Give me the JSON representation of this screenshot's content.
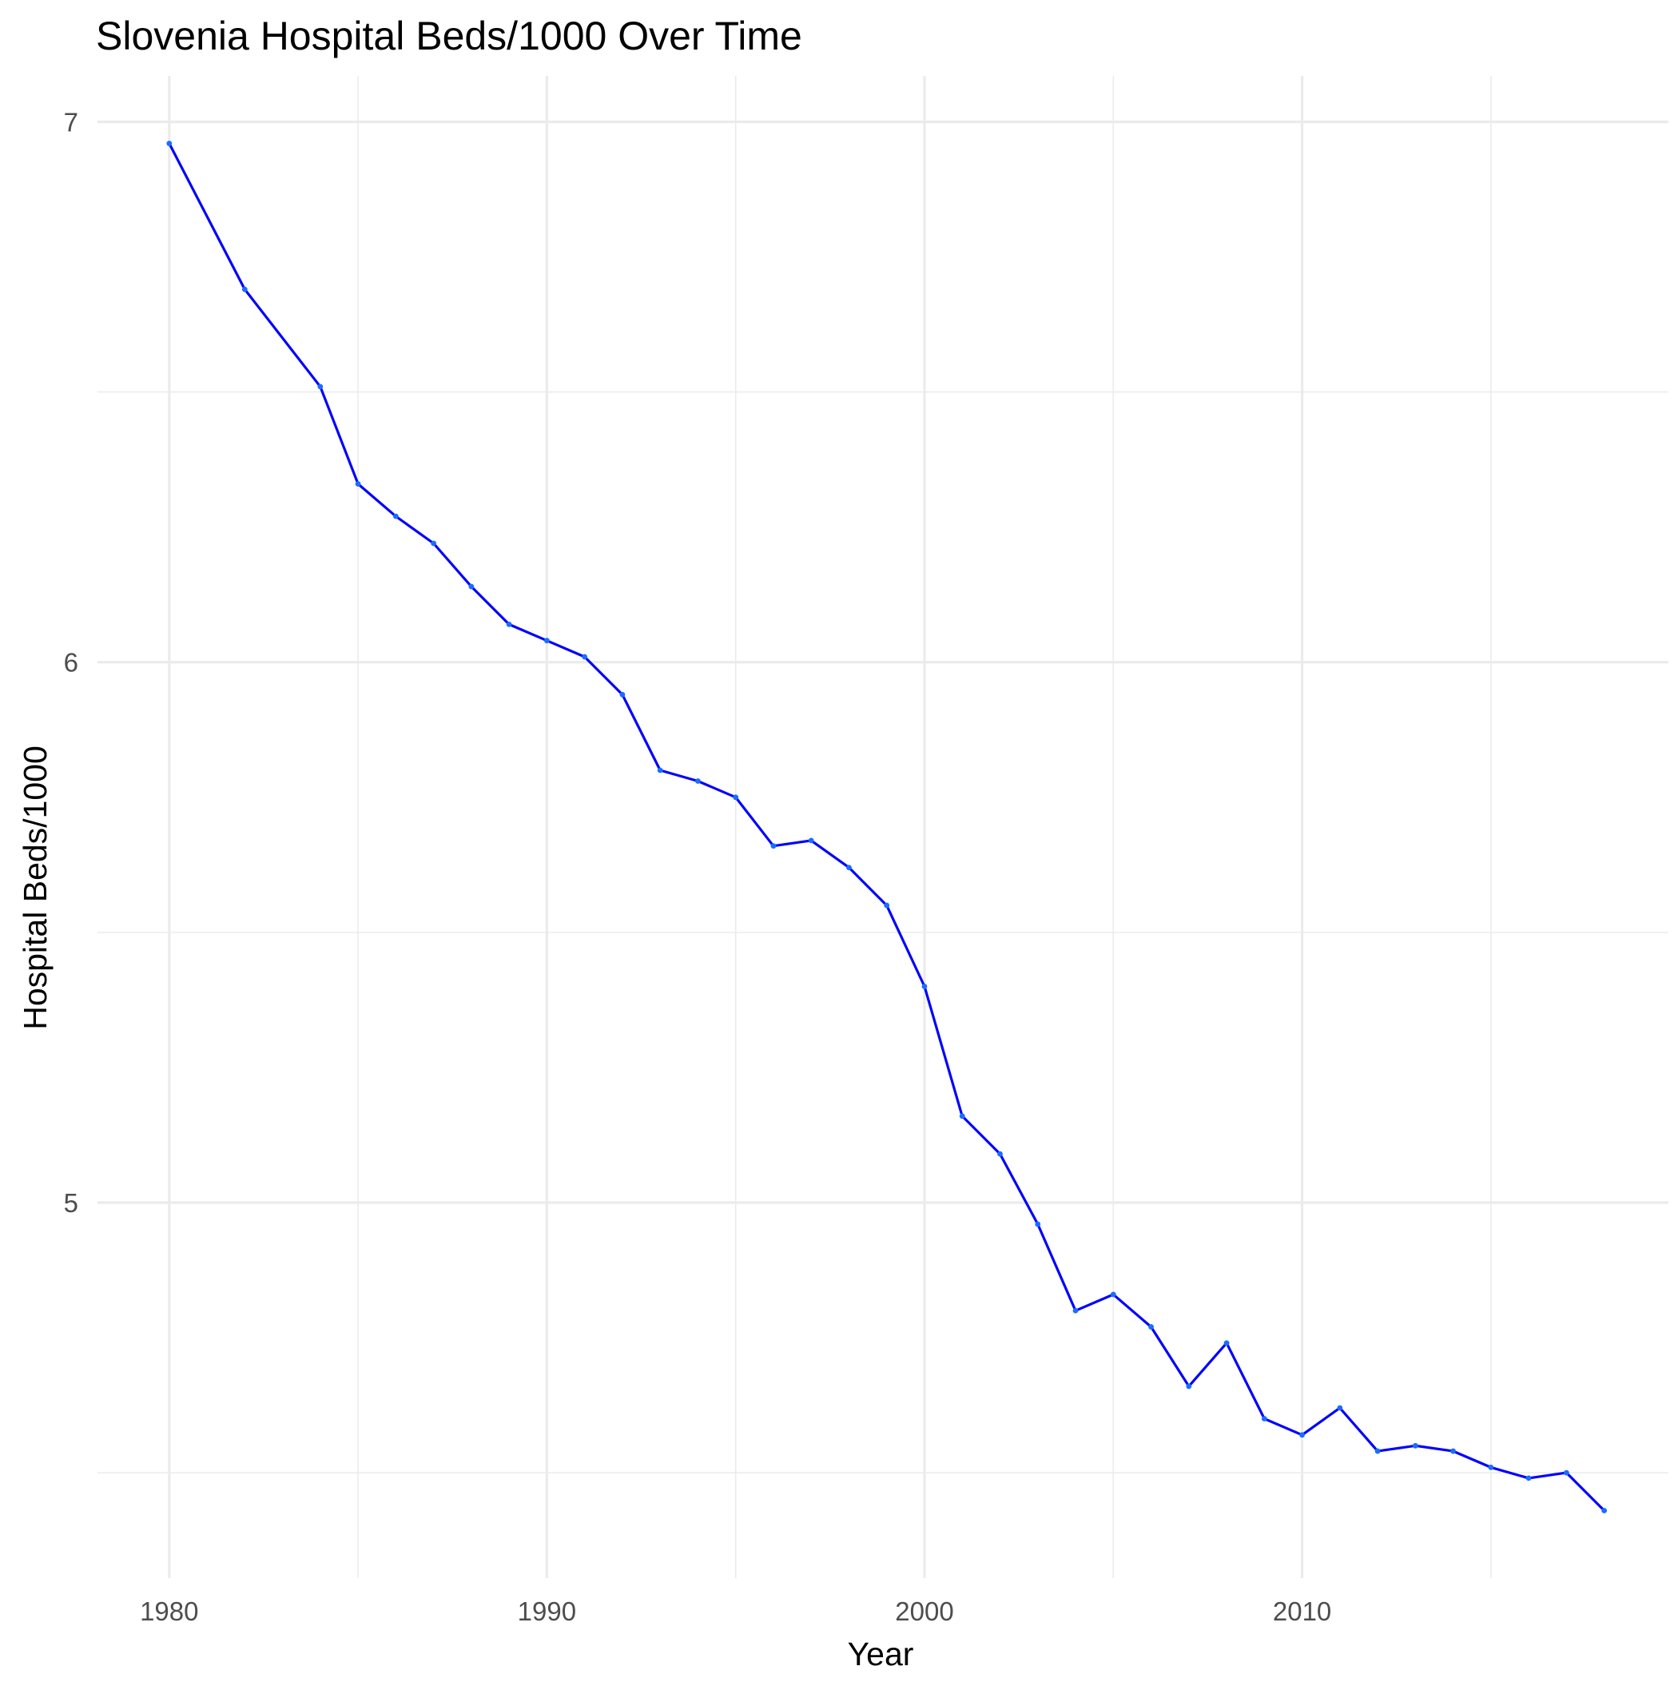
{
  "chart_data": {
    "type": "line",
    "title": "Slovenia Hospital Beds/1000 Over Time",
    "xlabel": "Year",
    "ylabel": "Hospital Beds/1000",
    "xlim": [
      1978.1,
      2019.7
    ],
    "ylim": [
      4.305,
      7.085
    ],
    "x_major_ticks": [
      1980,
      1990,
      2000,
      2010
    ],
    "x_tick_labels": [
      "1980",
      "1990",
      "2000",
      "2010"
    ],
    "x_minor_ticks": [
      1985,
      1995,
      2005,
      2015
    ],
    "y_major_ticks": [
      5,
      6,
      7
    ],
    "y_tick_labels": [
      "5",
      "6",
      "7"
    ],
    "y_minor_ticks": [
      4.5,
      5.5,
      6.5
    ],
    "grid": true,
    "line_color": "#0000ff",
    "point_color": "#1a6dff",
    "series": [
      {
        "x": [
          1980,
          1982,
          1984,
          1985,
          1986,
          1987,
          1988,
          1989,
          1990,
          1991,
          1992,
          1993,
          1994,
          1995,
          1996,
          1997,
          1998,
          1999,
          2000,
          2001,
          2002,
          2003,
          2004,
          2005,
          2006,
          2007,
          2008,
          2009,
          2010,
          2011,
          2012,
          2013,
          2014,
          2015,
          2016,
          2017,
          2018
        ],
        "values": [
          6.96,
          6.69,
          6.51,
          6.33,
          6.27,
          6.22,
          6.14,
          6.07,
          6.04,
          6.01,
          5.94,
          5.8,
          5.78,
          5.75,
          5.66,
          5.67,
          5.62,
          5.55,
          5.4,
          5.16,
          5.09,
          4.96,
          4.8,
          4.83,
          4.77,
          4.66,
          4.74,
          4.6,
          4.57,
          4.62,
          4.54,
          4.55,
          4.54,
          4.51,
          4.49,
          4.5,
          4.43
        ]
      }
    ]
  }
}
